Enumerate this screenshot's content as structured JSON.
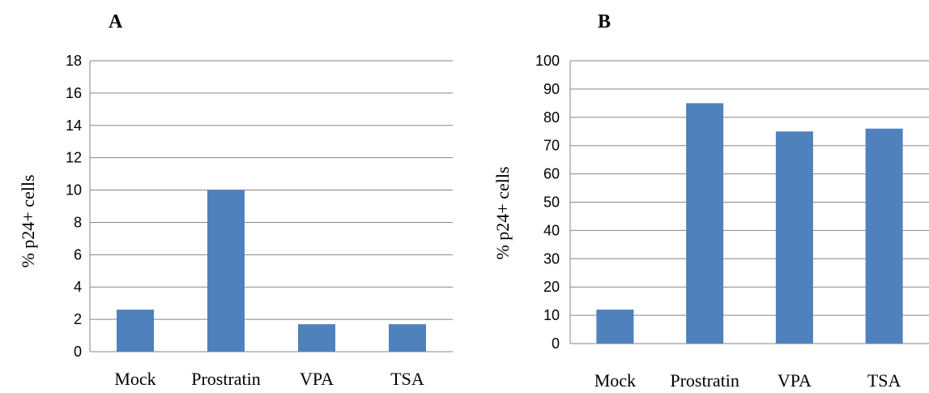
{
  "chart_data": [
    {
      "type": "bar",
      "panel_label": "A",
      "categories": [
        "Mock",
        "Prostratin",
        "VPA",
        "TSA"
      ],
      "values": [
        2.6,
        10.0,
        1.7,
        1.7
      ],
      "ylabel": "%  p24+ cells",
      "ylim": [
        0,
        18
      ],
      "yticks": [
        0,
        2,
        4,
        6,
        8,
        10,
        12,
        14,
        16,
        18
      ],
      "grid": true,
      "color": "#4F81BD"
    },
    {
      "type": "bar",
      "panel_label": "B",
      "categories": [
        "Mock",
        "Prostratin",
        "VPA",
        "TSA"
      ],
      "values": [
        12,
        85,
        75,
        76
      ],
      "ylabel": "%  p24+ cells",
      "ylim": [
        0,
        100
      ],
      "yticks": [
        0,
        10,
        20,
        30,
        40,
        50,
        60,
        70,
        80,
        90,
        100
      ],
      "grid": true,
      "color": "#4F81BD"
    }
  ]
}
